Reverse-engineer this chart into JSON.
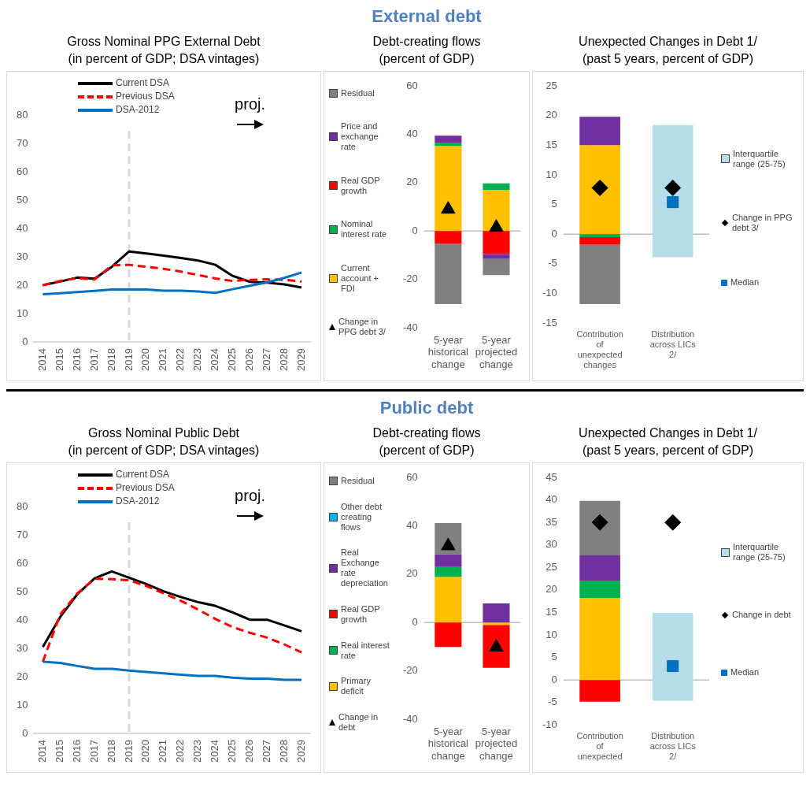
{
  "chart_data": [
    {
      "type": "line",
      "title": "Gross Nominal PPG External Debt",
      "subtitle": "(in percent of GDP; DSA vintages)",
      "categories": [
        "2014",
        "2015",
        "2016",
        "2017",
        "2018",
        "2019",
        "2020",
        "2021",
        "2022",
        "2023",
        "2024",
        "2025",
        "2026",
        "2027",
        "2028",
        "2029"
      ],
      "series": [
        {
          "name": "Current DSA",
          "color": "#000000",
          "values": [
            20,
            21.3,
            22.7,
            22.3,
            26.5,
            31.9,
            31.2,
            30.4,
            29.6,
            28.7,
            27.2,
            23.3,
            21.2,
            20.9,
            20.3,
            19.2
          ]
        },
        {
          "name": "Previous DSA",
          "color": "#ff0000",
          "line_style": "dashed",
          "values": [
            20,
            21.5,
            22.5,
            22,
            27,
            27.2,
            26.5,
            25.8,
            24.8,
            23.6,
            22.4,
            21.5,
            21.9,
            22.1,
            21.9,
            21.3
          ]
        },
        {
          "name": "DSA-2012",
          "color": "#0070c0",
          "values": [
            16.8,
            17.2,
            17.6,
            18,
            18.5,
            18.5,
            18.5,
            18.1,
            18.1,
            17.8,
            17.3,
            18.6,
            19.8,
            21,
            22.6,
            24.5
          ]
        }
      ],
      "ylim": [
        0,
        80
      ],
      "yticks": [
        0,
        10,
        20,
        30,
        40,
        50,
        60,
        70,
        80
      ],
      "legend": "top left",
      "ref_lines": [
        {
          "axis": "x",
          "value": "2019",
          "color": "#d9d9d9",
          "line_style": "dashed"
        }
      ],
      "annotations": [
        "proj."
      ]
    },
    {
      "type": "bar",
      "stacked": true,
      "title": "Debt-creating flows",
      "subtitle": "(percent of GDP)",
      "annotations": [
        "External debt"
      ],
      "categories": [
        "5-year historical change",
        "5-year projected change"
      ],
      "series": [
        {
          "name": "Current account + FDI",
          "color": "#ffc000",
          "values": [
            35.2,
            17
          ]
        },
        {
          "name": "Nominal interest rate",
          "color": "#00b050",
          "values": [
            1.4,
            2.7
          ]
        },
        {
          "name": "Real GDP growth",
          "color": "#ff0000",
          "values": [
            -5.1,
            -9.5
          ]
        },
        {
          "name": "Price and exchange rate",
          "color": "#7030a0",
          "values": [
            2.8,
            -2
          ]
        },
        {
          "name": "Residual",
          "color": "#808080",
          "values": [
            -25.1,
            -6.7
          ]
        },
        {
          "name": "Change in PPG debt 3/",
          "type": "scatter",
          "marker": "triangle",
          "color": "#000000",
          "x": [
            "5-year historical change",
            "5-year projected change"
          ],
          "values": [
            9,
            1.5
          ]
        }
      ],
      "ylim": [
        -40,
        60
      ],
      "yticks": [
        -40,
        -20,
        0,
        20,
        40,
        60
      ],
      "legend": "left",
      "ref_lines": [
        {
          "axis": "y",
          "value": 0,
          "color": "#bfbfbf"
        }
      ]
    },
    {
      "type": "bar",
      "stacked": true,
      "title": "Unexpected Changes in Debt 1/",
      "subtitle": "(past 5 years, percent of GDP)",
      "categories": [
        "Contribution of unexpected changes",
        "Distribution across LICs 2/"
      ],
      "series": [
        {
          "color": "#ffc000",
          "values": [
            15,
            null
          ]
        },
        {
          "color": "#00b050",
          "values": [
            -0.5,
            null
          ]
        },
        {
          "color": "#ff0000",
          "values": [
            -1.3,
            null
          ]
        },
        {
          "color": "#7030a0",
          "values": [
            4.8,
            null
          ]
        },
        {
          "color": "#808080",
          "values": [
            -10,
            null
          ]
        },
        {
          "name": "Interquartile range (25-75)",
          "color": "#b7dee8",
          "base": [
            null,
            -3.9
          ],
          "values": [
            null,
            22.3
          ]
        },
        {
          "name": "Change in PPG debt 3/",
          "type": "scatter",
          "marker": "diamond",
          "color": "#000000",
          "x": [
            "Contribution of unexpected changes",
            "Distribution across LICs 2/"
          ],
          "values": [
            7.8,
            7.8
          ]
        },
        {
          "name": "Median",
          "type": "scatter",
          "marker": "square",
          "color": "#0070c0",
          "x": [
            "Distribution across LICs 2/"
          ],
          "values": [
            5.4
          ]
        }
      ],
      "ylim": [
        -15,
        25
      ],
      "yticks": [
        -15,
        -10,
        -5,
        0,
        5,
        10,
        15,
        20,
        25
      ],
      "legend": "right",
      "ref_lines": [
        {
          "axis": "y",
          "value": 0,
          "color": "#bfbfbf"
        }
      ]
    },
    {
      "type": "line",
      "title": "Gross Nominal Public Debt",
      "subtitle": "(in percent of GDP; DSA vintages)",
      "categories": [
        "2014",
        "2015",
        "2016",
        "2017",
        "2018",
        "2019",
        "2020",
        "2021",
        "2022",
        "2023",
        "2024",
        "2025",
        "2026",
        "2027",
        "2028",
        "2029"
      ],
      "series": [
        {
          "name": "Current DSA",
          "color": "#000000",
          "values": [
            30.5,
            41,
            49.1,
            54.7,
            57.1,
            54.9,
            52.7,
            50.1,
            48.1,
            46.3,
            45,
            42.7,
            40.1,
            40.1,
            38.1,
            36
          ]
        },
        {
          "name": "Previous DSA",
          "color": "#ff0000",
          "line_style": "dashed",
          "values": [
            25.3,
            41.9,
            49.4,
            54.5,
            54.4,
            54,
            52,
            49.4,
            46.8,
            43.7,
            40.4,
            37.5,
            35.5,
            33.8,
            31.4,
            28.6
          ]
        },
        {
          "name": "DSA-2012",
          "color": "#0070c0",
          "values": [
            25.3,
            24.9,
            23.8,
            22.8,
            22.8,
            22.2,
            21.7,
            21.2,
            20.7,
            20.3,
            20.3,
            19.7,
            19.3,
            19.3,
            18.9,
            18.9
          ]
        }
      ],
      "ylim": [
        0,
        80
      ],
      "yticks": [
        0,
        10,
        20,
        30,
        40,
        50,
        60,
        70,
        80
      ],
      "legend": "top left",
      "ref_lines": [
        {
          "axis": "x",
          "value": "2019",
          "color": "#d9d9d9",
          "line_style": "dashed"
        }
      ],
      "annotations": [
        "proj."
      ]
    },
    {
      "type": "bar",
      "stacked": true,
      "title": "Debt-creating flows",
      "subtitle": "(percent of GDP)",
      "annotations": [
        "Public debt"
      ],
      "categories": [
        "5-year historical change",
        "5-year projected change"
      ],
      "series": [
        {
          "name": "Primary deficit",
          "color": "#ffc000",
          "values": [
            18.9,
            -1
          ]
        },
        {
          "name": "Real interest rate",
          "color": "#00b050",
          "values": [
            4.1,
            null
          ]
        },
        {
          "name": "Real GDP growth",
          "color": "#ff0000",
          "values": [
            -10.1,
            -17.7
          ]
        },
        {
          "name": "Real Exchange rate depreciation",
          "color": "#7030a0",
          "values": [
            5.3,
            7.9
          ]
        },
        {
          "name": "Other debt creating flows",
          "color": "#00b0f0",
          "values": [
            null,
            null
          ]
        },
        {
          "name": "Residual",
          "color": "#808080",
          "values": [
            12.8,
            null
          ]
        },
        {
          "name": "Change in debt",
          "type": "scatter",
          "marker": "triangle",
          "color": "#000000",
          "x": [
            "5-year historical change",
            "5-year projected change"
          ],
          "values": [
            31.7,
            -10.2
          ]
        }
      ],
      "ylim": [
        -40,
        60
      ],
      "yticks": [
        -40,
        -20,
        0,
        20,
        40,
        60
      ],
      "legend": "left",
      "ref_lines": [
        {
          "axis": "y",
          "value": 0,
          "color": "#bfbfbf"
        }
      ]
    },
    {
      "type": "bar",
      "stacked": true,
      "title": "Unexpected Changes in Debt 1/",
      "subtitle": "(past 5 years, percent of GDP)",
      "categories": [
        "Contribution of unexpected",
        "Distribution across LICs 2/"
      ],
      "series": [
        {
          "color": "#ffc000",
          "values": [
            18.2,
            null
          ]
        },
        {
          "color": "#00b050",
          "values": [
            3.9,
            null
          ]
        },
        {
          "color": "#7030a0",
          "values": [
            5.6,
            null
          ]
        },
        {
          "color": "#808080",
          "values": [
            12.1,
            null
          ]
        },
        {
          "color": "#ff0000",
          "values": [
            -4.8,
            null
          ]
        },
        {
          "name": "Interquartile range (25-75)",
          "color": "#b7dee8",
          "base": [
            null,
            -4.6
          ],
          "values": [
            null,
            19.5
          ]
        },
        {
          "name": "Change in debt",
          "type": "scatter",
          "marker": "diamond",
          "color": "#000000",
          "x": [
            "Contribution of unexpected",
            "Distribution across LICs 2/"
          ],
          "values": [
            35,
            35
          ]
        },
        {
          "name": "Median",
          "type": "scatter",
          "marker": "square",
          "color": "#0070c0",
          "x": [
            "Distribution across LICs 2/"
          ],
          "values": [
            3.1
          ]
        }
      ],
      "ylim": [
        -10,
        45
      ],
      "yticks": [
        -10,
        -5,
        0,
        5,
        10,
        15,
        20,
        25,
        30,
        35,
        40,
        45
      ],
      "legend": "right",
      "ref_lines": [
        {
          "axis": "y",
          "value": 0,
          "color": "#bfbfbf"
        }
      ]
    }
  ]
}
